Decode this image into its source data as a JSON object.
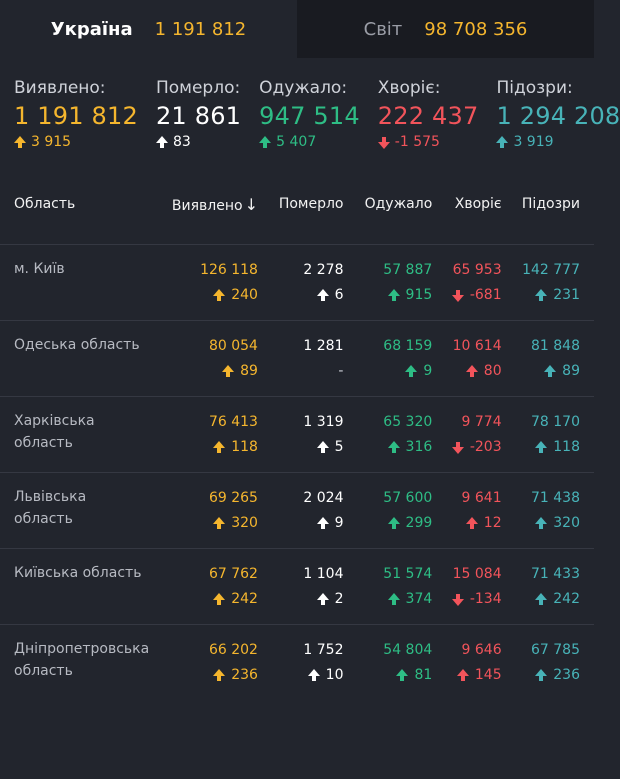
{
  "tabs": {
    "ukraine": {
      "label": "Україна",
      "value": "1 191 812"
    },
    "world": {
      "label": "Світ",
      "value": "98 708 356"
    }
  },
  "summary": [
    {
      "label": "Виявлено:",
      "value": "1 191 812",
      "delta": "3 915",
      "dir": "up",
      "color": "yellow"
    },
    {
      "label": "Померло:",
      "value": "21 861",
      "delta": "83",
      "dir": "up",
      "color": "white"
    },
    {
      "label": "Одужало:",
      "value": "947 514",
      "delta": "5 407",
      "dir": "up",
      "color": "green"
    },
    {
      "label": "Хворіє:",
      "value": "222 437",
      "delta": "-1 575",
      "dir": "down",
      "color": "red"
    },
    {
      "label": "Підозри:",
      "value": "1 294 208",
      "delta": "3 919",
      "dir": "up",
      "color": "teal"
    }
  ],
  "table": {
    "headers": {
      "region": "Область",
      "detected": "Виявлено",
      "sort_icon": "↓",
      "died": "Померло",
      "recovered": "Одужало",
      "sick": "Хворіє",
      "suspected": "Підозри"
    },
    "rows": [
      {
        "region": "м. Київ",
        "detected": "126 118",
        "detected_d": "240",
        "detected_dir": "up",
        "died": "2 278",
        "died_d": "6",
        "died_dir": "up",
        "recovered": "57 887",
        "recovered_d": "915",
        "recovered_dir": "up",
        "sick": "65 953",
        "sick_d": "-681",
        "sick_dir": "down",
        "suspected": "142 777",
        "suspected_d": "231",
        "suspected_dir": "up"
      },
      {
        "region": "Одеська область",
        "detected": "80 054",
        "detected_d": "89",
        "detected_dir": "up",
        "died": "1 281",
        "died_d": "-",
        "died_dir": "none",
        "recovered": "68 159",
        "recovered_d": "9",
        "recovered_dir": "up",
        "sick": "10 614",
        "sick_d": "80",
        "sick_dir": "up",
        "suspected": "81 848",
        "suspected_d": "89",
        "suspected_dir": "up"
      },
      {
        "region": "Харківська область",
        "detected": "76 413",
        "detected_d": "118",
        "detected_dir": "up",
        "died": "1 319",
        "died_d": "5",
        "died_dir": "up",
        "recovered": "65 320",
        "recovered_d": "316",
        "recovered_dir": "up",
        "sick": "9 774",
        "sick_d": "-203",
        "sick_dir": "down",
        "suspected": "78 170",
        "suspected_d": "118",
        "suspected_dir": "up"
      },
      {
        "region": "Львівська область",
        "detected": "69 265",
        "detected_d": "320",
        "detected_dir": "up",
        "died": "2 024",
        "died_d": "9",
        "died_dir": "up",
        "recovered": "57 600",
        "recovered_d": "299",
        "recovered_dir": "up",
        "sick": "9 641",
        "sick_d": "12",
        "sick_dir": "up",
        "suspected": "71 438",
        "suspected_d": "320",
        "suspected_dir": "up"
      },
      {
        "region": "Київська область",
        "detected": "67 762",
        "detected_d": "242",
        "detected_dir": "up",
        "died": "1 104",
        "died_d": "2",
        "died_dir": "up",
        "recovered": "51 574",
        "recovered_d": "374",
        "recovered_dir": "up",
        "sick": "15 084",
        "sick_d": "-134",
        "sick_dir": "down",
        "suspected": "71 433",
        "suspected_d": "242",
        "suspected_dir": "up"
      },
      {
        "region": "Дніпропетровська область",
        "detected": "66 202",
        "detected_d": "236",
        "detected_dir": "up",
        "died": "1 752",
        "died_d": "10",
        "died_dir": "up",
        "recovered": "54 804",
        "recovered_d": "81",
        "recovered_dir": "up",
        "sick": "9 646",
        "sick_d": "145",
        "sick_dir": "up",
        "suspected": "67 785",
        "suspected_d": "236",
        "suspected_dir": "up"
      }
    ]
  },
  "colors": {
    "yellow": "#f5b62e",
    "white": "#ffffff",
    "green": "#2ebd85",
    "red": "#f2545b",
    "teal": "#48b3b8"
  }
}
